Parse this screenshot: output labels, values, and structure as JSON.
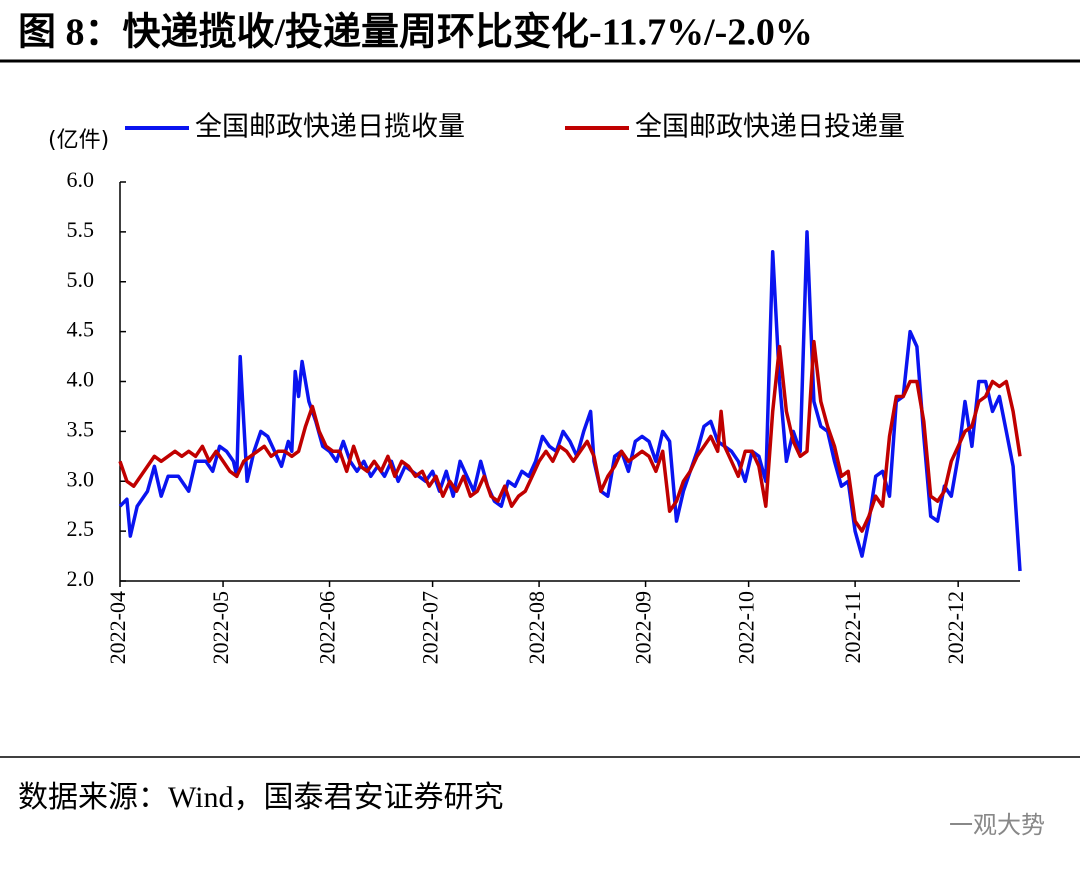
{
  "chart_data": {
    "type": "line",
    "title": "图 8：快递揽收/投递量周环比变化-11.7%/-2.0%",
    "y_label": "(亿件)",
    "source": "数据来源：Wind，国泰君安证券研究",
    "watermark": "一观大势",
    "xlim": [
      0,
      262
    ],
    "xticks": [
      {
        "value": 0,
        "label": "2022-04"
      },
      {
        "value": 30,
        "label": "2022-05"
      },
      {
        "value": 61,
        "label": "2022-06"
      },
      {
        "value": 91,
        "label": "2022-07"
      },
      {
        "value": 122,
        "label": "2022-08"
      },
      {
        "value": 153,
        "label": "2022-09"
      },
      {
        "value": 183,
        "label": "2022-10"
      },
      {
        "value": 214,
        "label": "2022-11"
      },
      {
        "value": 244,
        "label": "2022-12"
      }
    ],
    "ylim": [
      2,
      6
    ],
    "yticks": [
      {
        "value": 2,
        "label": "2.0"
      },
      2.5,
      {
        "value": 3,
        "label": "3.0"
      },
      3.5,
      {
        "value": 4,
        "label": "4.0"
      },
      4.5,
      {
        "value": 5,
        "label": "5.0"
      },
      5.5,
      {
        "value": 6,
        "label": "6.0"
      }
    ],
    "legend": "top",
    "series": [
      {
        "name": "全国邮政快递日揽收量",
        "color": "#0a14f0",
        "x": [
          0,
          2,
          3,
          5,
          8,
          10,
          12,
          14,
          17,
          20,
          22,
          25,
          27,
          29,
          31,
          33,
          34,
          35,
          36,
          37,
          39,
          41,
          43,
          45,
          47,
          49,
          50,
          51,
          52,
          53,
          55,
          57,
          59,
          61,
          63,
          65,
          67,
          69,
          71,
          73,
          75,
          77,
          79,
          81,
          83,
          85,
          87,
          89,
          91,
          93,
          95,
          97,
          99,
          101,
          103,
          105,
          107,
          109,
          111,
          113,
          115,
          117,
          119,
          121,
          123,
          125,
          127,
          129,
          131,
          133,
          135,
          137,
          138,
          140,
          142,
          144,
          146,
          148,
          150,
          152,
          154,
          156,
          158,
          160,
          162,
          164,
          166,
          168,
          170,
          172,
          174,
          176,
          178,
          180,
          182,
          184,
          186,
          188,
          190,
          192,
          194,
          196,
          198,
          200,
          202,
          204,
          206,
          208,
          210,
          212,
          214,
          216,
          218,
          220,
          222,
          224,
          226,
          228,
          230,
          232,
          234,
          236,
          238,
          240,
          242,
          244,
          246,
          248,
          250,
          252,
          254,
          256,
          258,
          260,
          262
        ],
        "values": [
          2.75,
          2.82,
          2.45,
          2.75,
          2.9,
          3.15,
          2.85,
          3.05,
          3.05,
          2.9,
          3.2,
          3.2,
          3.1,
          3.35,
          3.3,
          3.2,
          3.05,
          4.25,
          3.6,
          3.0,
          3.3,
          3.5,
          3.45,
          3.3,
          3.15,
          3.4,
          3.3,
          4.1,
          3.85,
          4.2,
          3.8,
          3.6,
          3.35,
          3.3,
          3.2,
          3.4,
          3.2,
          3.1,
          3.2,
          3.05,
          3.15,
          3.05,
          3.2,
          3.0,
          3.15,
          3.1,
          3.05,
          3.0,
          3.1,
          2.9,
          3.1,
          2.85,
          3.2,
          3.05,
          2.9,
          3.2,
          2.95,
          2.8,
          2.75,
          3.0,
          2.95,
          3.1,
          3.05,
          3.2,
          3.45,
          3.35,
          3.3,
          3.5,
          3.4,
          3.25,
          3.5,
          3.7,
          3.2,
          2.9,
          2.85,
          3.25,
          3.3,
          3.1,
          3.4,
          3.45,
          3.4,
          3.2,
          3.5,
          3.4,
          2.6,
          2.9,
          3.1,
          3.3,
          3.55,
          3.6,
          3.4,
          3.35,
          3.3,
          3.2,
          3.0,
          3.3,
          3.25,
          3.0,
          5.3,
          4.0,
          3.2,
          3.5,
          3.3,
          5.5,
          3.8,
          3.55,
          3.5,
          3.2,
          2.95,
          3.0,
          2.5,
          2.25,
          2.6,
          3.05,
          3.1,
          2.85,
          3.8,
          3.85,
          4.5,
          4.35,
          3.45,
          2.65,
          2.6,
          2.95,
          2.85,
          3.25,
          3.8,
          3.35,
          4.0,
          4.0,
          3.7,
          3.85,
          3.5,
          3.15,
          2.1
        ]
      },
      {
        "name": "全国邮政快递日投递量",
        "color": "#c00000",
        "x": [
          0,
          2,
          4,
          6,
          8,
          10,
          12,
          14,
          16,
          18,
          20,
          22,
          24,
          26,
          28,
          30,
          32,
          34,
          36,
          38,
          40,
          42,
          44,
          46,
          48,
          50,
          52,
          54,
          56,
          58,
          60,
          62,
          64,
          66,
          68,
          70,
          72,
          74,
          76,
          78,
          80,
          82,
          84,
          86,
          88,
          90,
          92,
          94,
          96,
          98,
          100,
          102,
          104,
          106,
          108,
          110,
          112,
          114,
          116,
          118,
          120,
          122,
          124,
          126,
          128,
          130,
          132,
          134,
          136,
          138,
          140,
          142,
          144,
          146,
          148,
          150,
          152,
          154,
          156,
          158,
          160,
          162,
          164,
          166,
          168,
          170,
          172,
          174,
          175,
          176,
          178,
          180,
          182,
          184,
          186,
          188,
          190,
          192,
          194,
          196,
          198,
          200,
          202,
          204,
          206,
          208,
          210,
          212,
          214,
          216,
          218,
          220,
          222,
          224,
          226,
          228,
          230,
          232,
          234,
          236,
          238,
          240,
          242,
          244,
          246,
          248,
          250,
          252,
          254,
          256,
          258,
          260,
          262
        ],
        "values": [
          3.2,
          3.0,
          2.95,
          3.05,
          3.15,
          3.25,
          3.2,
          3.25,
          3.3,
          3.25,
          3.3,
          3.25,
          3.35,
          3.2,
          3.3,
          3.2,
          3.1,
          3.05,
          3.2,
          3.25,
          3.3,
          3.35,
          3.25,
          3.3,
          3.3,
          3.25,
          3.3,
          3.55,
          3.75,
          3.5,
          3.35,
          3.3,
          3.3,
          3.1,
          3.35,
          3.15,
          3.1,
          3.2,
          3.1,
          3.25,
          3.05,
          3.2,
          3.15,
          3.05,
          3.1,
          2.95,
          3.05,
          2.85,
          3.0,
          2.9,
          3.05,
          2.85,
          2.9,
          3.05,
          2.85,
          2.8,
          2.95,
          2.75,
          2.85,
          2.9,
          3.05,
          3.2,
          3.3,
          3.2,
          3.35,
          3.3,
          3.2,
          3.3,
          3.4,
          3.25,
          2.9,
          3.05,
          3.15,
          3.3,
          3.2,
          3.25,
          3.3,
          3.25,
          3.1,
          3.3,
          2.7,
          2.8,
          3.0,
          3.1,
          3.25,
          3.35,
          3.45,
          3.3,
          3.7,
          3.35,
          3.2,
          3.05,
          3.3,
          3.3,
          3.15,
          2.75,
          3.7,
          4.35,
          3.7,
          3.4,
          3.25,
          3.3,
          4.4,
          3.8,
          3.55,
          3.35,
          3.05,
          3.1,
          2.6,
          2.5,
          2.65,
          2.85,
          2.75,
          3.45,
          3.85,
          3.85,
          4.0,
          4.0,
          3.6,
          2.85,
          2.8,
          2.9,
          3.2,
          3.35,
          3.5,
          3.55,
          3.8,
          3.85,
          4.0,
          3.95,
          4.0,
          3.7,
          3.25
        ]
      }
    ]
  }
}
